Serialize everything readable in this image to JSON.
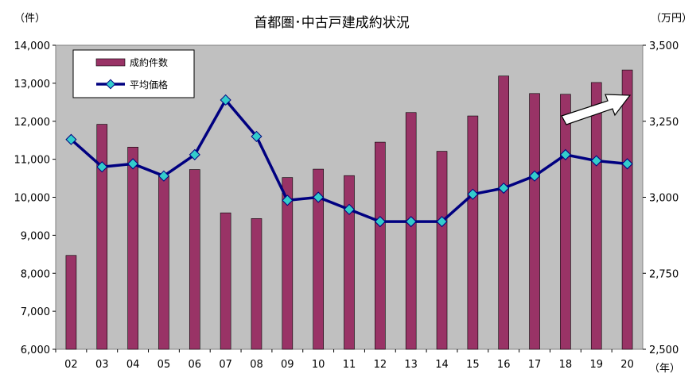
{
  "chart_data": {
    "type": "bar+line",
    "title": "首都圏･中古戸建成約状況",
    "left_unit": "（件）",
    "right_unit": "（万円）",
    "x_unit": "（年）",
    "categories": [
      "02",
      "03",
      "04",
      "05",
      "06",
      "07",
      "08",
      "09",
      "10",
      "11",
      "12",
      "13",
      "14",
      "15",
      "16",
      "17",
      "18",
      "19",
      "20"
    ],
    "series": [
      {
        "name": "成約件数",
        "type": "bar",
        "axis": "left",
        "color": "#993366",
        "values": [
          8470,
          11920,
          11320,
          10570,
          10730,
          9590,
          9440,
          10520,
          10740,
          10570,
          11450,
          12230,
          11210,
          12140,
          13190,
          12730,
          12710,
          13020,
          13350
        ]
      },
      {
        "name": "平均価格",
        "type": "line",
        "axis": "right",
        "color": "#000080",
        "marker_color": "#33cccc",
        "values": [
          3190,
          3100,
          3110,
          3070,
          3140,
          3320,
          3200,
          2990,
          3000,
          2960,
          2920,
          2920,
          2920,
          3010,
          3030,
          3070,
          3140,
          3120,
          3110
        ]
      }
    ],
    "left_axis": {
      "min": 6000,
      "max": 14000,
      "ticks": [
        "6,000",
        "7,000",
        "8,000",
        "9,000",
        "10,000",
        "11,000",
        "12,000",
        "13,000",
        "14,000"
      ]
    },
    "right_axis": {
      "min": 2500,
      "max": 3500,
      "ticks": [
        "2,500",
        "2,750",
        "3,000",
        "3,250",
        "3,500"
      ]
    },
    "legend_position": "top-left",
    "plot_background": "#c0c0c0",
    "annotation": "upward-arrow"
  }
}
